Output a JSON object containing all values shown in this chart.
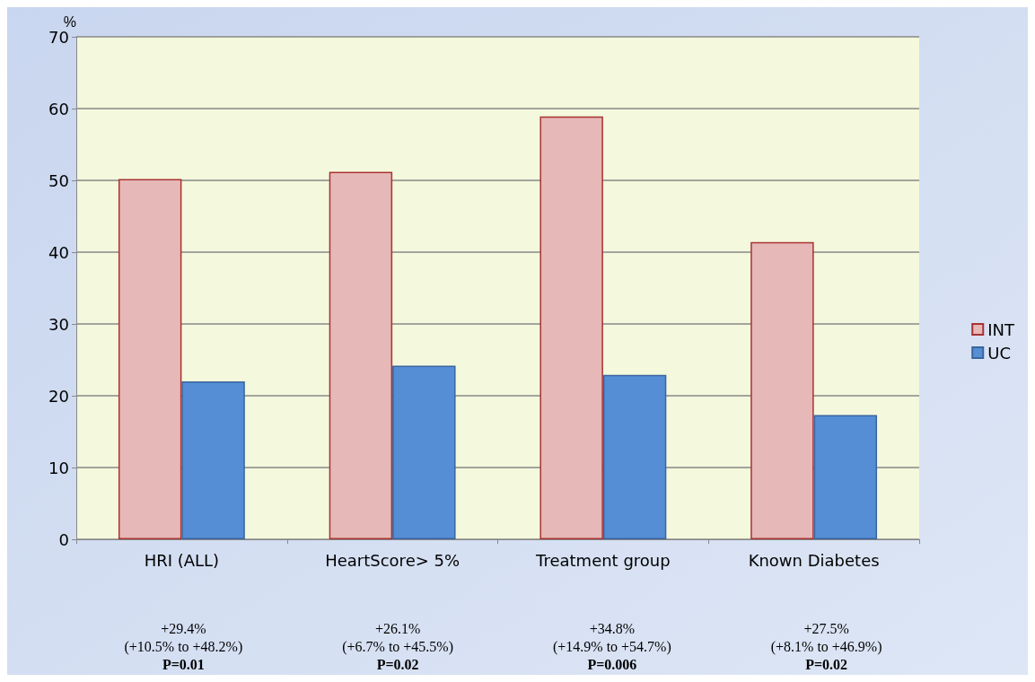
{
  "chart_data": {
    "type": "bar",
    "ylabel": "%",
    "categories": [
      "HRI (ALL)",
      "HeartScore> 5%",
      "Treatment group",
      "Known Diabetes"
    ],
    "series": [
      {
        "name": "INT",
        "color": "#e6b8b7",
        "values": [
          50.2,
          51.2,
          58.9,
          41.4
        ]
      },
      {
        "name": "UC",
        "color": "#558ed5",
        "values": [
          22.0,
          24.2,
          22.9,
          17.3
        ]
      }
    ],
    "ylim": [
      0,
      70
    ],
    "yticks": [
      0,
      10,
      20,
      30,
      40,
      50,
      60,
      70
    ],
    "grid": "y",
    "legend": "right",
    "annotations": [
      "+29.4%\n(+10.5% to +48.2%)",
      "+26.1%\n(+6.7% to +45.5%)",
      "+34.8%\n(+14.9% to +54.7%)",
      "+27.5%\n(+8.1% to +46.9%)",
      "P=0.01",
      "P=0.02",
      "P=0.006",
      "P=0.02"
    ]
  }
}
